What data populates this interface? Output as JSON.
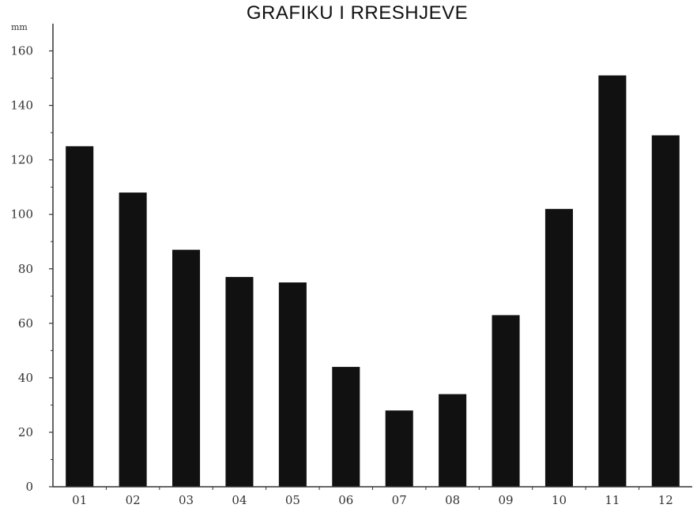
{
  "chart_data": {
    "type": "bar",
    "title": "GRAFIKU I RRESHJEVE",
    "ylabel": "mm",
    "xlabel": "",
    "categories": [
      "01",
      "02",
      "03",
      "04",
      "05",
      "06",
      "07",
      "08",
      "09",
      "10",
      "11",
      "12"
    ],
    "values": [
      125,
      108,
      87,
      77,
      75,
      44,
      28,
      34,
      63,
      102,
      151,
      129
    ],
    "ylim": [
      0,
      170
    ],
    "yticks": [
      0,
      20,
      40,
      60,
      80,
      100,
      120,
      140,
      160
    ],
    "ytick_labels": [
      "0",
      "20",
      "40",
      "60",
      "80",
      "100",
      "120",
      "140",
      "160"
    ],
    "grid": false,
    "legend": "none",
    "bar_color": "#111111"
  }
}
